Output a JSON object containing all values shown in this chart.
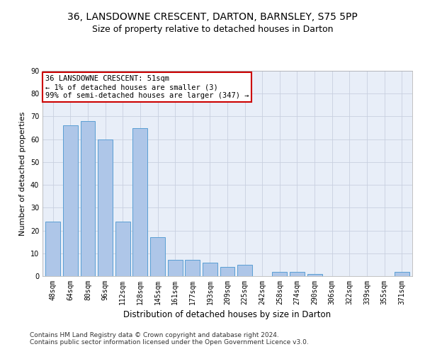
{
  "title": "36, LANSDOWNE CRESCENT, DARTON, BARNSLEY, S75 5PP",
  "subtitle": "Size of property relative to detached houses in Darton",
  "xlabel": "Distribution of detached houses by size in Darton",
  "ylabel": "Number of detached properties",
  "categories": [
    "48sqm",
    "64sqm",
    "80sqm",
    "96sqm",
    "112sqm",
    "128sqm",
    "145sqm",
    "161sqm",
    "177sqm",
    "193sqm",
    "209sqm",
    "225sqm",
    "242sqm",
    "258sqm",
    "274sqm",
    "290sqm",
    "306sqm",
    "322sqm",
    "339sqm",
    "355sqm",
    "371sqm"
  ],
  "values": [
    24,
    66,
    68,
    60,
    24,
    65,
    17,
    7,
    7,
    6,
    4,
    5,
    0,
    2,
    2,
    1,
    0,
    0,
    0,
    0,
    2
  ],
  "bar_color": "#aec6e8",
  "bar_edge_color": "#5a9fd4",
  "ylim": [
    0,
    90
  ],
  "yticks": [
    0,
    10,
    20,
    30,
    40,
    50,
    60,
    70,
    80,
    90
  ],
  "annotation_line1": "36 LANSDOWNE CRESCENT: 51sqm",
  "annotation_line2": "← 1% of detached houses are smaller (3)",
  "annotation_line3": "99% of semi-detached houses are larger (347) →",
  "annotation_box_color": "#cc0000",
  "footnote1": "Contains HM Land Registry data © Crown copyright and database right 2024.",
  "footnote2": "Contains public sector information licensed under the Open Government Licence v3.0.",
  "background_color": "#e8eef8",
  "grid_color": "#c8d0e0",
  "title_fontsize": 10,
  "subtitle_fontsize": 9,
  "xlabel_fontsize": 8.5,
  "ylabel_fontsize": 8,
  "tick_fontsize": 7,
  "annotation_fontsize": 7.5,
  "footnote_fontsize": 6.5
}
